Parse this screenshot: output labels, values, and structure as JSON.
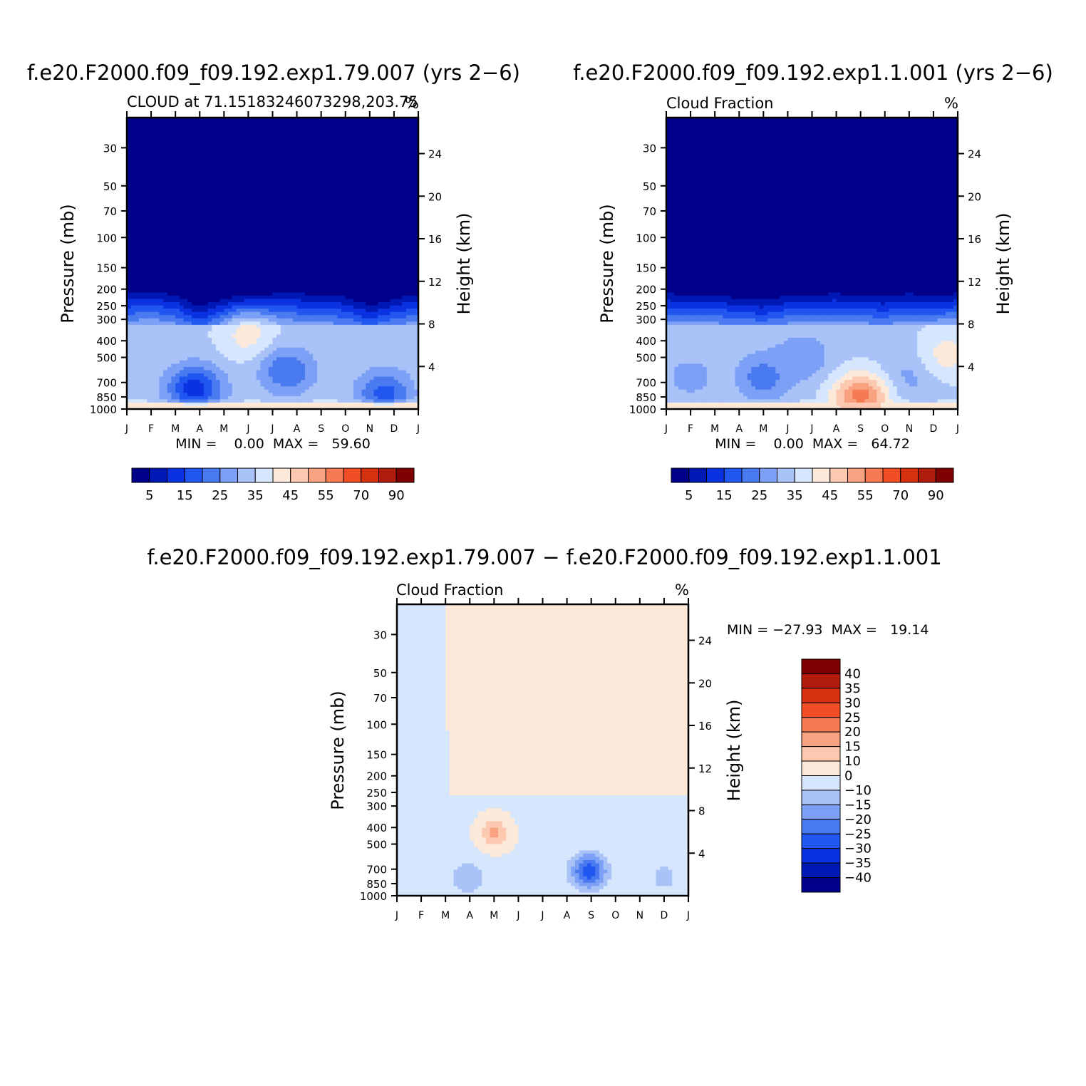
{
  "colors": {
    "background": "#ffffff",
    "seq_palette": [
      "#00008b",
      "#0018b4",
      "#0b32e0",
      "#2156f0",
      "#4a7af0",
      "#7ca0f6",
      "#a9c2f8",
      "#d6e6fc",
      "#fde9da",
      "#fcc8af",
      "#f8a281",
      "#f67a54",
      "#f24e26",
      "#d6300f",
      "#b01c0c",
      "#7f0000"
    ],
    "diff_palette": [
      "#00008b",
      "#0018b4",
      "#0b32e0",
      "#2156f0",
      "#4a7af0",
      "#7ca0f6",
      "#a9c2f8",
      "#d6e6fc",
      "#fde9da",
      "#fcc8af",
      "#f8a281",
      "#f67a54",
      "#f24e26",
      "#d6300f",
      "#b01c0c",
      "#7f0000"
    ]
  },
  "chart_data": [
    {
      "type": "heatmap",
      "title": "f.e20.F2000.f09_f09.192.exp1.79.007 (yrs 2−6)",
      "subtitle_left": "CLOUD at 71.15183246073298,203.75",
      "subtitle_right": "%",
      "ylabel": "Pressure (mb)",
      "ylabel_right": "Height (km)",
      "x_ticks": [
        "J",
        "F",
        "M",
        "A",
        "M",
        "J",
        "J",
        "A",
        "S",
        "O",
        "N",
        "D",
        "J"
      ],
      "pressure_ticks": [
        30,
        50,
        70,
        100,
        150,
        200,
        250,
        300,
        400,
        500,
        700,
        850,
        1000
      ],
      "height_ticks": [
        4,
        8,
        12,
        16,
        20,
        24
      ],
      "min_max_text": "MIN =    0.00  MAX =   59.60",
      "min": 0.0,
      "max": 59.6,
      "colorbar_labels": [
        "5",
        "15",
        "25",
        "35",
        "45",
        "55",
        "70",
        "90"
      ],
      "colorbar_levels": [
        0,
        5,
        10,
        15,
        20,
        25,
        30,
        35,
        40,
        45,
        50,
        55,
        60,
        70,
        80,
        90,
        100
      ],
      "features": [
        {
          "kind": "cloud_top",
          "months": [
            0,
            1,
            2,
            3,
            4,
            5,
            6,
            7,
            8,
            9,
            10,
            11,
            12
          ],
          "pressure": [
            205,
            200,
            210,
            245,
            225,
            215,
            208,
            205,
            208,
            215,
            240,
            220,
            205
          ]
        },
        {
          "kind": "blob",
          "month": 5,
          "pressure": 380,
          "value": 42
        },
        {
          "kind": "blob",
          "month": 2.8,
          "pressure": 760,
          "value": 12
        },
        {
          "kind": "blob",
          "month": 6.6,
          "pressure": 600,
          "value": 20
        },
        {
          "kind": "blob",
          "month": 10.6,
          "pressure": 810,
          "value": 18
        },
        {
          "kind": "surface_band",
          "pressure": 960,
          "value": 47
        }
      ]
    },
    {
      "type": "heatmap",
      "title": "f.e20.F2000.f09_f09.192.exp1.1.001 (yrs 2−6)",
      "subtitle_left": "Cloud Fraction",
      "subtitle_right": "%",
      "ylabel": "Pressure (mb)",
      "ylabel_right": "Height (km)",
      "x_ticks": [
        "J",
        "F",
        "M",
        "A",
        "M",
        "J",
        "J",
        "A",
        "S",
        "O",
        "N",
        "D",
        "J"
      ],
      "pressure_ticks": [
        30,
        50,
        70,
        100,
        150,
        200,
        250,
        300,
        400,
        500,
        700,
        850,
        1000
      ],
      "height_ticks": [
        4,
        8,
        12,
        16,
        20,
        24
      ],
      "min_max_text": "MIN =    0.00  MAX =   64.72",
      "min": 0.0,
      "max": 64.72,
      "colorbar_labels": [
        "5",
        "15",
        "25",
        "35",
        "45",
        "55",
        "70",
        "90"
      ],
      "colorbar_levels": [
        0,
        5,
        10,
        15,
        20,
        25,
        30,
        35,
        40,
        45,
        50,
        55,
        60,
        70,
        80,
        90,
        100
      ],
      "features": [
        {
          "kind": "cloud_top",
          "months": [
            0,
            1,
            2,
            3,
            4,
            5,
            6,
            7,
            8,
            9,
            10,
            11,
            12
          ],
          "pressure": [
            205,
            208,
            210,
            218,
            225,
            212,
            208,
            205,
            210,
            215,
            205,
            210,
            205
          ]
        },
        {
          "kind": "blob",
          "month": 4,
          "pressure": 650,
          "value": 22
        },
        {
          "kind": "blob",
          "month": 1,
          "pressure": 650,
          "value": 28
        },
        {
          "kind": "blob",
          "month": 5.6,
          "pressure": 500,
          "value": 25
        },
        {
          "kind": "blob",
          "month": 10,
          "pressure": 650,
          "value": 28
        },
        {
          "kind": "blob",
          "month": 8,
          "pressure": 850,
          "value": 58
        },
        {
          "kind": "blob",
          "month": 11.6,
          "pressure": 480,
          "value": 42
        },
        {
          "kind": "surface_band",
          "pressure": 960,
          "value": 45
        }
      ]
    },
    {
      "type": "heatmap",
      "title": "f.e20.F2000.f09_f09.192.exp1.79.007 − f.e20.F2000.f09_f09.192.exp1.1.001",
      "subtitle_left": "Cloud Fraction",
      "subtitle_right": "%",
      "ylabel": "Pressure (mb)",
      "ylabel_right": "Height (km)",
      "x_ticks": [
        "J",
        "F",
        "M",
        "A",
        "M",
        "J",
        "J",
        "A",
        "S",
        "O",
        "N",
        "D",
        "J"
      ],
      "pressure_ticks": [
        30,
        50,
        70,
        100,
        150,
        200,
        250,
        300,
        400,
        500,
        700,
        850,
        1000
      ],
      "height_ticks": [
        4,
        8,
        12,
        16,
        20,
        24
      ],
      "min_max_text": "MIN = −27.93  MAX =   19.14",
      "min": -27.93,
      "max": 19.14,
      "colorbar_labels": [
        "40",
        "35",
        "30",
        "25",
        "20",
        "15",
        "10",
        "0",
        "−10",
        "−15",
        "−20",
        "−25",
        "−30",
        "−35",
        "−40"
      ],
      "colorbar_levels": [
        -45,
        -40,
        -35,
        -30,
        -25,
        -20,
        -15,
        -10,
        0,
        10,
        15,
        20,
        25,
        30,
        35,
        40,
        45
      ],
      "features": [
        {
          "kind": "blob",
          "month": 4,
          "pressure": 430,
          "value": 17
        },
        {
          "kind": "blob",
          "month": 7.9,
          "pressure": 720,
          "value": -27.93
        },
        {
          "kind": "blob",
          "month": 2.9,
          "pressure": 790,
          "value": -15
        },
        {
          "kind": "blob",
          "month": 11,
          "pressure": 780,
          "value": -12
        },
        {
          "kind": "region",
          "value": 4
        }
      ]
    }
  ]
}
